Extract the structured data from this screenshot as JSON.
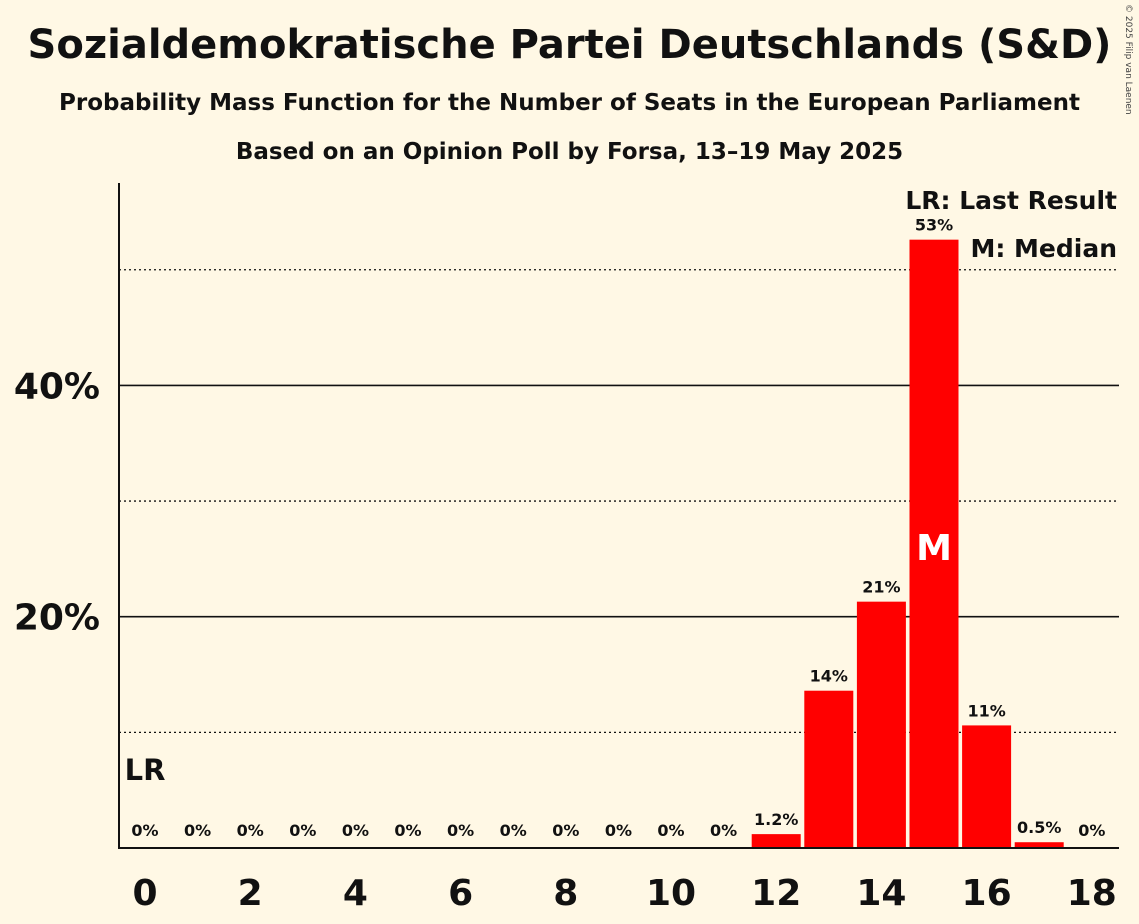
{
  "title": "Sozialdemokratische Partei Deutschlands (S&D)",
  "subtitle": "Probability Mass Function for the Number of Seats in the European Parliament",
  "subtitle2": "Based on an Opinion Poll by Forsa, 13–19 May 2025",
  "copyright": "© 2025 Filip van Laenen",
  "colors": {
    "bar": "#ff0000",
    "background": "#fff8e5",
    "text": "#111111"
  },
  "legend": {
    "lr": "LR: Last Result",
    "median": "M: Median"
  },
  "chart_data": {
    "type": "bar",
    "x": [
      0,
      1,
      2,
      3,
      4,
      5,
      6,
      7,
      8,
      9,
      10,
      11,
      12,
      13,
      14,
      15,
      16,
      17,
      18
    ],
    "values": [
      0,
      0,
      0,
      0,
      0,
      0,
      0,
      0,
      0,
      0,
      0,
      0,
      1.2,
      13.6,
      21.3,
      52.6,
      10.6,
      0.5,
      0
    ],
    "data_labels": [
      "0%",
      "0%",
      "0%",
      "0%",
      "0%",
      "0%",
      "0%",
      "0%",
      "0%",
      "0%",
      "0%",
      "0%",
      "1.2%",
      "14%",
      "21%",
      "53%",
      "11%",
      "0.5%",
      "0%"
    ],
    "x_ticks": [
      0,
      2,
      4,
      6,
      8,
      10,
      12,
      14,
      16,
      18
    ],
    "y_ticks": [
      20,
      40
    ],
    "y_tick_labels": [
      "20%",
      "40%"
    ],
    "y_dotted_gridlines": [
      10,
      30,
      50
    ],
    "ylim": [
      0,
      57.5
    ],
    "last_result_seat": 0,
    "last_result_label": "LR",
    "median_seat": 15,
    "median_label": "M",
    "legend_position": "top-right"
  }
}
